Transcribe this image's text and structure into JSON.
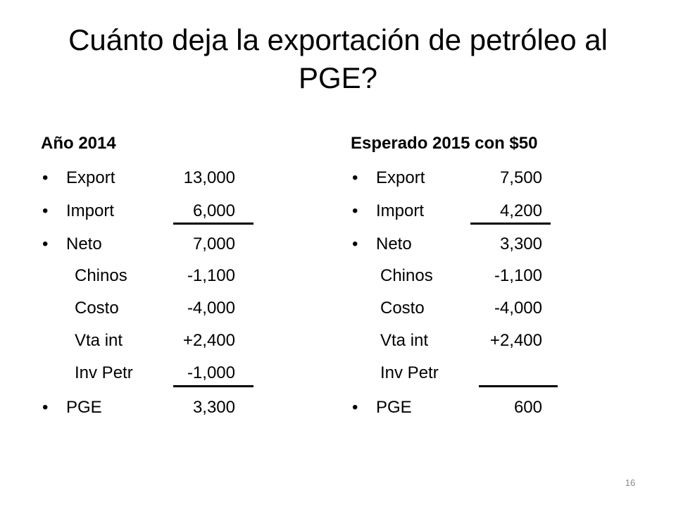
{
  "title": "Cuánto deja la exportación de petróleo al PGE?",
  "left": {
    "heading": "Año 2014",
    "rows": [
      {
        "bullet": "•",
        "label": "Export",
        "value": "13,000"
      },
      {
        "bullet": "•",
        "label": "Import",
        "value": "6,000"
      },
      {
        "bullet": "•",
        "label": "Neto",
        "value": "7,000"
      },
      {
        "bullet": "",
        "label": "Chinos",
        "value": "-1,100"
      },
      {
        "bullet": "",
        "label": "Costo",
        "value": "-4,000"
      },
      {
        "bullet": "",
        "label": "Vta int",
        "value": "+2,400"
      },
      {
        "bullet": "",
        "label": "Inv Petr",
        "value": "-1,000"
      },
      {
        "bullet": "•",
        "label": "PGE",
        "value": "3,300"
      }
    ]
  },
  "right": {
    "heading": "Esperado 2015 con $50",
    "rows": [
      {
        "bullet": "•",
        "label": "Export",
        "value": "7,500"
      },
      {
        "bullet": "•",
        "label": "Import",
        "value": "4,200"
      },
      {
        "bullet": "•",
        "label": "Neto",
        "value": "3,300"
      },
      {
        "bullet": "",
        "label": "Chinos",
        "value": "-1,100"
      },
      {
        "bullet": "",
        "label": "Costo",
        "value": "-4,000"
      },
      {
        "bullet": "",
        "label": "Vta int",
        "value": "+2,400"
      },
      {
        "bullet": "",
        "label": "Inv Petr",
        "value": ""
      },
      {
        "bullet": "•",
        "label": "PGE",
        "value": "600"
      }
    ]
  },
  "page_number": "16"
}
